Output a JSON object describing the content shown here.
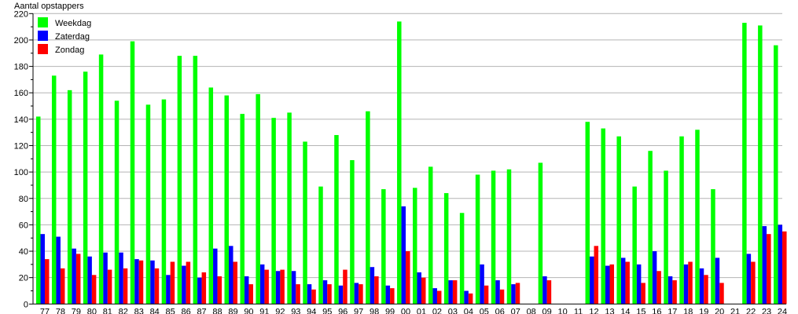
{
  "chart_data": {
    "type": "bar",
    "ylabel": "Aantal opstappers",
    "xlabel": "",
    "ylim": [
      0,
      220
    ],
    "yticks": [
      0,
      20,
      40,
      60,
      80,
      100,
      120,
      140,
      160,
      180,
      200,
      220
    ],
    "grid": true,
    "legend_position": "top-left",
    "categories": [
      "77",
      "78",
      "79",
      "80",
      "81",
      "82",
      "83",
      "84",
      "85",
      "86",
      "87",
      "88",
      "89",
      "90",
      "91",
      "92",
      "93",
      "94",
      "95",
      "96",
      "97",
      "98",
      "99",
      "00",
      "01",
      "02",
      "03",
      "04",
      "05",
      "06",
      "07",
      "08",
      "09",
      "10",
      "11",
      "12",
      "13",
      "14",
      "15",
      "16",
      "17",
      "18",
      "19",
      "20",
      "21",
      "22",
      "23",
      "24"
    ],
    "series": [
      {
        "name": "Weekdag",
        "color": "#00ff00",
        "values": [
          142,
          173,
          162,
          176,
          189,
          154,
          199,
          151,
          155,
          188,
          188,
          164,
          158,
          144,
          159,
          141,
          145,
          123,
          89,
          128,
          109,
          146,
          87,
          214,
          88,
          104,
          84,
          69,
          98,
          101,
          102,
          null,
          107,
          null,
          null,
          138,
          133,
          127,
          89,
          116,
          101,
          127,
          132,
          87,
          null,
          213,
          211,
          196
        ]
      },
      {
        "name": "Zaterdag",
        "color": "#0000ff",
        "values": [
          53,
          51,
          42,
          36,
          39,
          39,
          34,
          33,
          22,
          29,
          20,
          42,
          44,
          21,
          30,
          25,
          25,
          15,
          18,
          14,
          16,
          28,
          14,
          74,
          24,
          12,
          18,
          10,
          30,
          18,
          15,
          null,
          21,
          null,
          null,
          36,
          29,
          35,
          30,
          40,
          21,
          30,
          27,
          35,
          null,
          38,
          59,
          60
        ]
      },
      {
        "name": "Zondag",
        "color": "#ff0000",
        "values": [
          34,
          27,
          38,
          22,
          26,
          27,
          33,
          27,
          32,
          32,
          24,
          21,
          32,
          15,
          26,
          26,
          15,
          11,
          15,
          26,
          15,
          21,
          12,
          40,
          20,
          10,
          18,
          8,
          14,
          11,
          16,
          null,
          18,
          null,
          null,
          44,
          30,
          32,
          16,
          25,
          18,
          32,
          22,
          16,
          null,
          32,
          53,
          55
        ]
      }
    ]
  }
}
